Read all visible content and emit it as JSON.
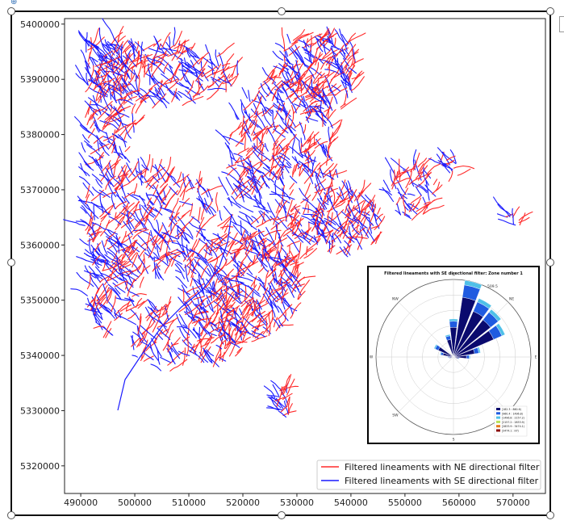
{
  "chart_data": [
    {
      "type": "scatter",
      "title": "",
      "xlabel": "",
      "ylabel": "",
      "xlim": [
        487000,
        576000
      ],
      "ylim": [
        5315000,
        5401000
      ],
      "xticks": [
        490000,
        500000,
        510000,
        520000,
        530000,
        540000,
        550000,
        560000,
        570000
      ],
      "yticks": [
        5320000,
        5330000,
        5340000,
        5350000,
        5360000,
        5370000,
        5380000,
        5390000,
        5400000
      ],
      "xtick_labels": [
        "490000",
        "500000",
        "510000",
        "520000",
        "530000",
        "540000",
        "550000",
        "560000",
        "570000"
      ],
      "ytick_labels": [
        "5320000",
        "5330000",
        "5340000",
        "5350000",
        "5360000",
        "5370000",
        "5380000",
        "5390000",
        "5400000"
      ],
      "legend_position": "lower-right",
      "series": [
        {
          "name": "Filtered lineaments with NE directional filter",
          "color": "#ff2a2a"
        },
        {
          "name": "Filtered lineaments with SE directional filter",
          "color": "#1a1aff"
        }
      ]
    },
    {
      "type": "rose",
      "title": "Filtered lineaments with SE directional filter: Zone number 1",
      "direction_labels": [
        "N",
        "NE",
        "E",
        "SE",
        "S",
        "SW",
        "W",
        "NW"
      ],
      "max_label": "509.5",
      "sectors": [
        {
          "direction_deg": 15,
          "length": 509.5
        },
        {
          "direction_deg": 30,
          "length": 420
        },
        {
          "direction_deg": 45,
          "length": 400
        },
        {
          "direction_deg": 60,
          "length": 370
        },
        {
          "direction_deg": 75,
          "length": 180
        },
        {
          "direction_deg": 0,
          "length": 250
        },
        {
          "direction_deg": 345,
          "length": 150
        },
        {
          "direction_deg": 300,
          "length": 140
        },
        {
          "direction_deg": 285,
          "length": 90
        },
        {
          "direction_deg": 270,
          "length": 40
        },
        {
          "direction_deg": 90,
          "length": 110
        },
        {
          "direction_deg": 105,
          "length": 40
        },
        {
          "direction_deg": 255,
          "length": 30
        }
      ],
      "legend": [
        {
          "label": "[182.3 : 860.6)",
          "color": "#0a0a6e"
        },
        {
          "label": "[960.4 : 1496.8)",
          "color": "#1f5be0"
        },
        {
          "label": "[1496.8 : 2157.2)",
          "color": "#4fc0e8"
        },
        {
          "label": "[2157.2 : 2833.9)",
          "color": "#b8e05a"
        },
        {
          "label": "[2833.9 : 3474.1)",
          "color": "#e87a1a"
        },
        {
          "label": "[3474.1 : inf)",
          "color": "#8a0a0a"
        }
      ]
    }
  ]
}
